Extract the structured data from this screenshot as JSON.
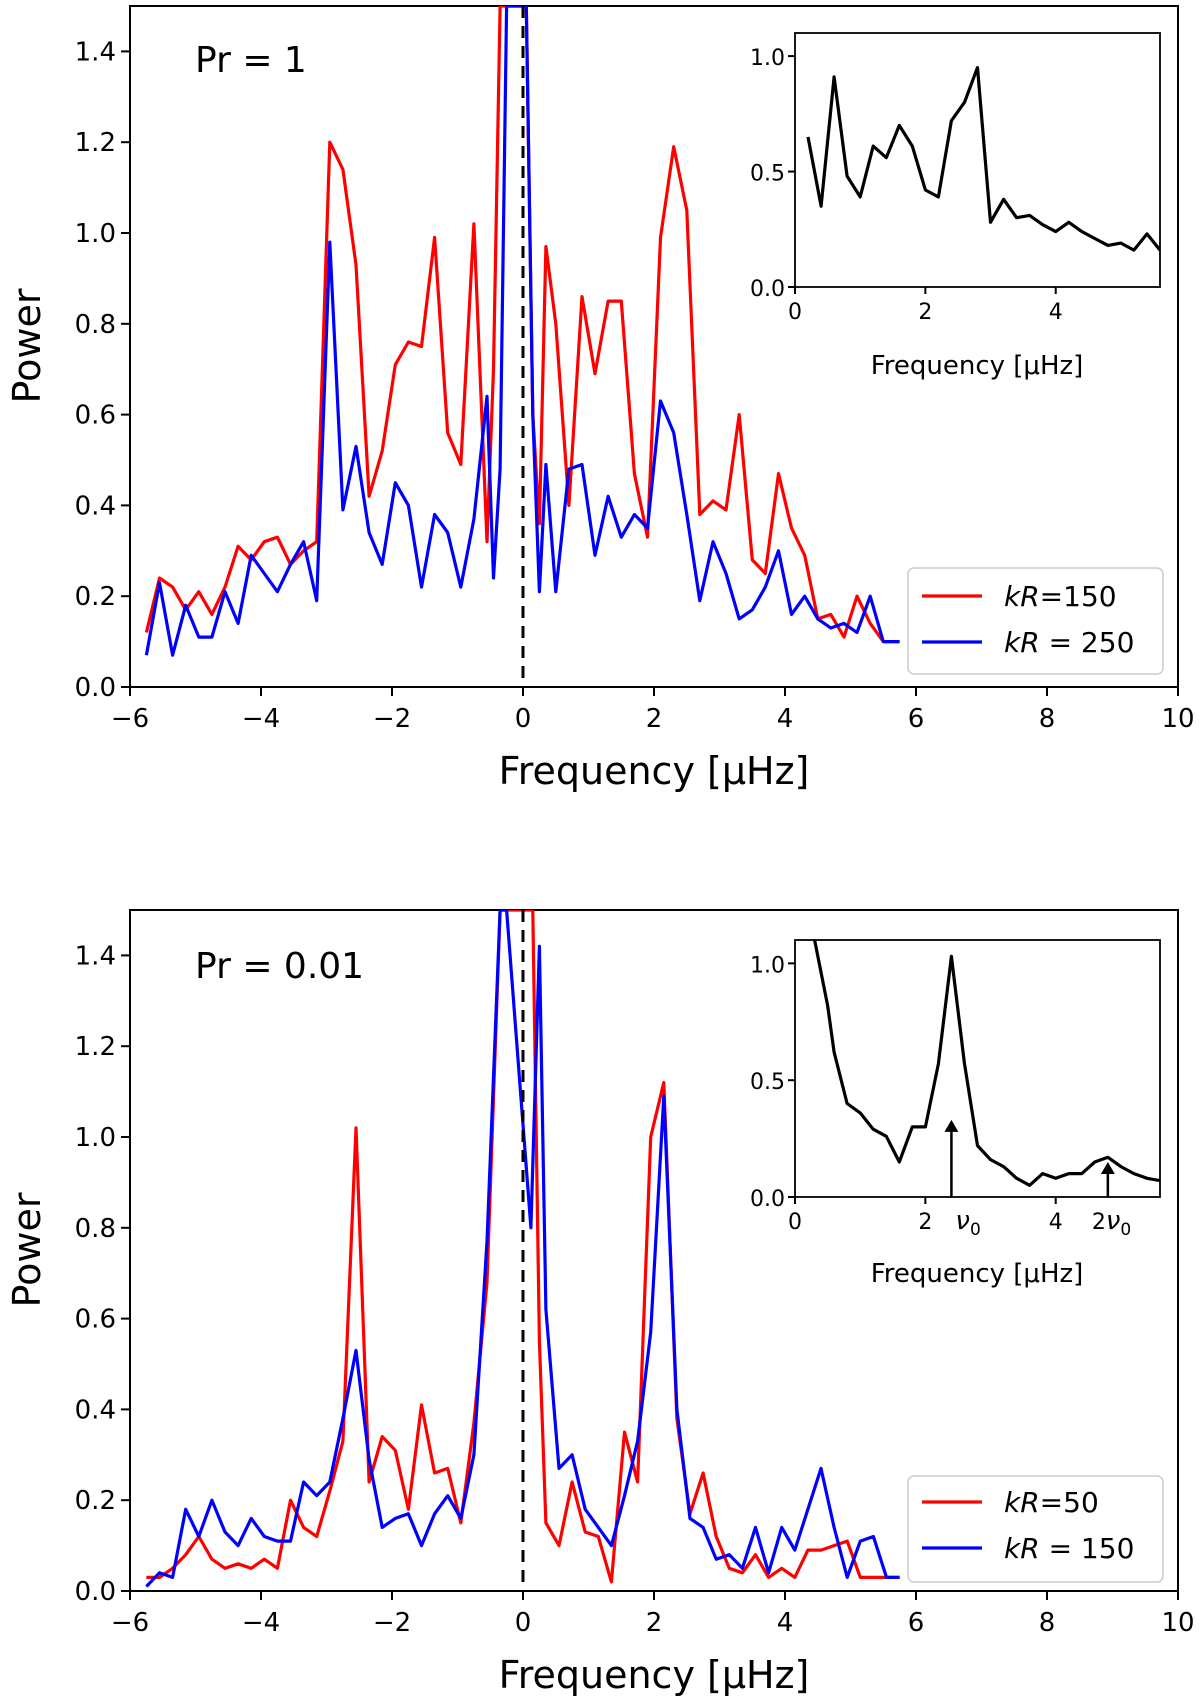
{
  "chart_data": [
    {
      "type": "line",
      "panel": "main-top",
      "title": "Pr = 1",
      "xlabel": "Frequency [μHz]",
      "ylabel": "Power",
      "xlim": [
        -6,
        10
      ],
      "ylim": [
        0,
        1.5
      ],
      "xticks": [
        -6,
        -4,
        -2,
        0,
        2,
        4,
        6,
        8,
        10
      ],
      "xtick_labels": [
        "−6",
        "−4",
        "−2",
        "0",
        "2",
        "4",
        "6",
        "8",
        "10"
      ],
      "yticks": [
        0,
        0.2,
        0.4,
        0.6,
        0.8,
        1.0,
        1.2,
        1.4
      ],
      "ytick_labels": [
        "0.0",
        "0.2",
        "0.4",
        "0.6",
        "0.8",
        "1.0",
        "1.2",
        "1.4"
      ],
      "vline": {
        "x": 0,
        "style": "dashed",
        "color": "#000000"
      },
      "legend_position": "lower-right",
      "series": [
        {
          "name": "kR=150",
          "legend_italic": "kR",
          "legend_rest": "=150",
          "color": "#ff0000",
          "x": [
            -5.75,
            -5.55,
            -5.35,
            -5.15,
            -4.95,
            -4.75,
            -4.55,
            -4.35,
            -4.15,
            -3.95,
            -3.75,
            -3.55,
            -3.35,
            -3.15,
            -2.95,
            -2.75,
            -2.55,
            -2.35,
            -2.15,
            -1.95,
            -1.75,
            -1.55,
            -1.35,
            -1.15,
            -0.95,
            -0.75,
            -0.55,
            -0.45,
            -0.35,
            -0.25,
            0.05,
            0.15,
            0.25,
            0.35,
            0.5,
            0.7,
            0.9,
            1.1,
            1.3,
            1.5,
            1.7,
            1.9,
            2.1,
            2.3,
            2.5,
            2.7,
            2.9,
            3.1,
            3.3,
            3.5,
            3.7,
            3.9,
            4.1,
            4.3,
            4.5,
            4.7,
            4.9,
            5.1,
            5.3,
            5.5,
            5.75
          ],
          "values": [
            0.12,
            0.24,
            0.22,
            0.17,
            0.21,
            0.16,
            0.22,
            0.31,
            0.28,
            0.32,
            0.33,
            0.27,
            0.3,
            0.32,
            1.2,
            1.14,
            0.93,
            0.42,
            0.52,
            0.71,
            0.76,
            0.75,
            0.99,
            0.56,
            0.49,
            1.02,
            0.32,
            0.7,
            1.5,
            1.5,
            1.5,
            0.6,
            0.36,
            0.97,
            0.8,
            0.4,
            0.86,
            0.69,
            0.85,
            0.85,
            0.47,
            0.33,
            0.99,
            1.19,
            1.05,
            0.38,
            0.41,
            0.39,
            0.6,
            0.28,
            0.25,
            0.47,
            0.35,
            0.29,
            0.15,
            0.16,
            0.11,
            0.2,
            0.14,
            0.1,
            0.1
          ]
        },
        {
          "name": "kR = 250",
          "legend_italic": "kR",
          "legend_rest": " = 250",
          "color": "#0000ff",
          "x": [
            -5.75,
            -5.55,
            -5.35,
            -5.15,
            -4.95,
            -4.75,
            -4.55,
            -4.35,
            -4.15,
            -3.95,
            -3.75,
            -3.55,
            -3.35,
            -3.15,
            -2.95,
            -2.75,
            -2.55,
            -2.35,
            -2.15,
            -1.95,
            -1.75,
            -1.55,
            -1.35,
            -1.15,
            -0.95,
            -0.75,
            -0.55,
            -0.45,
            -0.35,
            -0.25,
            0.05,
            0.15,
            0.25,
            0.35,
            0.5,
            0.7,
            0.9,
            1.1,
            1.3,
            1.5,
            1.7,
            1.9,
            2.1,
            2.3,
            2.5,
            2.7,
            2.9,
            3.1,
            3.3,
            3.5,
            3.7,
            3.9,
            4.1,
            4.3,
            4.5,
            4.7,
            4.9,
            5.1,
            5.3,
            5.5,
            5.75
          ],
          "values": [
            0.07,
            0.23,
            0.07,
            0.18,
            0.11,
            0.11,
            0.21,
            0.14,
            0.29,
            0.25,
            0.21,
            0.27,
            0.32,
            0.19,
            0.98,
            0.39,
            0.53,
            0.34,
            0.27,
            0.45,
            0.4,
            0.22,
            0.38,
            0.34,
            0.22,
            0.37,
            0.64,
            0.24,
            0.48,
            1.5,
            1.5,
            0.6,
            0.21,
            0.49,
            0.21,
            0.48,
            0.49,
            0.29,
            0.42,
            0.33,
            0.38,
            0.35,
            0.63,
            0.56,
            0.38,
            0.19,
            0.32,
            0.25,
            0.15,
            0.17,
            0.22,
            0.3,
            0.16,
            0.2,
            0.15,
            0.13,
            0.14,
            0.12,
            0.2,
            0.1,
            0.1
          ]
        }
      ]
    },
    {
      "type": "line",
      "panel": "inset-top",
      "xlabel": "Frequency [μHz]",
      "xlim": [
        0,
        5.6
      ],
      "ylim": [
        0,
        1.1
      ],
      "xticks": [
        0,
        2,
        4
      ],
      "xtick_labels": [
        "0",
        "2",
        "4"
      ],
      "yticks": [
        0,
        0.5,
        1.0
      ],
      "ytick_labels": [
        "0.0",
        "0.5",
        "1.0"
      ],
      "series": [
        {
          "name": "spectrum",
          "color": "#000000",
          "x": [
            0.2,
            0.4,
            0.6,
            0.8,
            1.0,
            1.2,
            1.4,
            1.6,
            1.8,
            2.0,
            2.2,
            2.4,
            2.6,
            2.8,
            3.0,
            3.2,
            3.4,
            3.6,
            3.8,
            4.0,
            4.2,
            4.4,
            4.6,
            4.8,
            5.0,
            5.2,
            5.4,
            5.6
          ],
          "values": [
            0.65,
            0.35,
            0.91,
            0.48,
            0.39,
            0.61,
            0.56,
            0.7,
            0.61,
            0.42,
            0.39,
            0.72,
            0.8,
            0.95,
            0.28,
            0.38,
            0.3,
            0.31,
            0.27,
            0.24,
            0.28,
            0.24,
            0.21,
            0.18,
            0.19,
            0.16,
            0.23,
            0.16
          ]
        }
      ]
    },
    {
      "type": "line",
      "panel": "main-bottom",
      "title": "Pr = 0.01",
      "xlabel": "Frequency [μHz]",
      "ylabel": "Power",
      "xlim": [
        -6,
        10
      ],
      "ylim": [
        0,
        1.5
      ],
      "xticks": [
        -6,
        -4,
        -2,
        0,
        2,
        4,
        6,
        8,
        10
      ],
      "xtick_labels": [
        "−6",
        "−4",
        "−2",
        "0",
        "2",
        "4",
        "6",
        "8",
        "10"
      ],
      "yticks": [
        0,
        0.2,
        0.4,
        0.6,
        0.8,
        1.0,
        1.2,
        1.4
      ],
      "ytick_labels": [
        "0.0",
        "0.2",
        "0.4",
        "0.6",
        "0.8",
        "1.0",
        "1.2",
        "1.4"
      ],
      "vline": {
        "x": 0,
        "style": "dashed",
        "color": "#000000"
      },
      "legend_position": "lower-right",
      "series": [
        {
          "name": "kR=50",
          "legend_italic": "kR",
          "legend_rest": "=50",
          "color": "#ff0000",
          "x": [
            -5.75,
            -5.55,
            -5.35,
            -5.15,
            -4.95,
            -4.75,
            -4.55,
            -4.35,
            -4.15,
            -3.95,
            -3.75,
            -3.55,
            -3.35,
            -3.15,
            -2.95,
            -2.75,
            -2.55,
            -2.35,
            -2.15,
            -1.95,
            -1.75,
            -1.55,
            -1.35,
            -1.15,
            -0.95,
            -0.75,
            -0.55,
            -0.35,
            -0.25,
            0.15,
            0.25,
            0.35,
            0.55,
            0.75,
            0.95,
            1.15,
            1.35,
            1.55,
            1.75,
            1.95,
            2.15,
            2.35,
            2.55,
            2.75,
            2.95,
            3.15,
            3.35,
            3.55,
            3.75,
            3.95,
            4.15,
            4.35,
            4.55,
            4.75,
            4.95,
            5.15,
            5.35,
            5.55,
            5.75
          ],
          "values": [
            0.03,
            0.03,
            0.05,
            0.08,
            0.12,
            0.07,
            0.05,
            0.06,
            0.05,
            0.07,
            0.05,
            0.2,
            0.14,
            0.12,
            0.22,
            0.33,
            1.02,
            0.24,
            0.34,
            0.31,
            0.18,
            0.41,
            0.26,
            0.27,
            0.15,
            0.37,
            0.68,
            1.5,
            1.5,
            1.5,
            0.55,
            0.15,
            0.1,
            0.24,
            0.13,
            0.12,
            0.02,
            0.35,
            0.24,
            1.0,
            1.12,
            0.38,
            0.17,
            0.26,
            0.12,
            0.05,
            0.04,
            0.08,
            0.03,
            0.05,
            0.03,
            0.09,
            0.09,
            0.1,
            0.11,
            0.03,
            0.03,
            0.03,
            0.03
          ]
        },
        {
          "name": "kR = 150",
          "legend_italic": "kR",
          "legend_rest": " = 150",
          "color": "#0000ff",
          "x": [
            -5.75,
            -5.55,
            -5.35,
            -5.15,
            -4.95,
            -4.75,
            -4.55,
            -4.35,
            -4.15,
            -3.95,
            -3.75,
            -3.55,
            -3.35,
            -3.15,
            -2.95,
            -2.75,
            -2.55,
            -2.35,
            -2.15,
            -1.95,
            -1.75,
            -1.55,
            -1.35,
            -1.15,
            -0.95,
            -0.75,
            -0.55,
            -0.35,
            -0.25,
            0.12,
            0.25,
            0.35,
            0.55,
            0.75,
            0.95,
            1.15,
            1.35,
            1.55,
            1.75,
            1.95,
            2.15,
            2.35,
            2.55,
            2.75,
            2.95,
            3.15,
            3.35,
            3.55,
            3.75,
            3.95,
            4.15,
            4.35,
            4.55,
            4.75,
            4.95,
            5.15,
            5.35,
            5.55,
            5.75
          ],
          "values": [
            0.01,
            0.04,
            0.03,
            0.18,
            0.12,
            0.2,
            0.13,
            0.1,
            0.16,
            0.12,
            0.11,
            0.11,
            0.24,
            0.21,
            0.24,
            0.38,
            0.53,
            0.29,
            0.14,
            0.16,
            0.17,
            0.1,
            0.17,
            0.21,
            0.16,
            0.3,
            0.77,
            1.5,
            1.5,
            0.8,
            1.42,
            0.62,
            0.27,
            0.3,
            0.18,
            0.14,
            0.1,
            0.21,
            0.33,
            0.57,
            1.09,
            0.4,
            0.16,
            0.14,
            0.07,
            0.08,
            0.05,
            0.14,
            0.04,
            0.14,
            0.09,
            0.18,
            0.27,
            0.14,
            0.03,
            0.11,
            0.12,
            0.03,
            0.03
          ]
        }
      ]
    },
    {
      "type": "line",
      "panel": "inset-bottom",
      "xlabel": "Frequency [μHz]",
      "xlim": [
        0,
        5.6
      ],
      "ylim": [
        0,
        1.1
      ],
      "xticks": [
        0,
        2,
        4
      ],
      "xtick_labels": [
        "0",
        "2",
        "4"
      ],
      "yticks": [
        0,
        0.5,
        1.0
      ],
      "ytick_labels": [
        "0.0",
        "0.5",
        "1.0"
      ],
      "annotations": [
        {
          "label_main": "ν",
          "label_sub": "0",
          "prefix": "",
          "x": 2.4,
          "arrow_to_y": 0.33
        },
        {
          "label_main": "ν",
          "label_sub": "0",
          "prefix": "2",
          "x": 4.8,
          "arrow_to_y": 0.15
        }
      ],
      "series": [
        {
          "name": "spectrum",
          "color": "#000000",
          "x": [
            0.3,
            0.5,
            0.6,
            0.8,
            1.0,
            1.2,
            1.4,
            1.6,
            1.8,
            2.0,
            2.2,
            2.4,
            2.6,
            2.8,
            3.0,
            3.2,
            3.4,
            3.6,
            3.8,
            4.0,
            4.2,
            4.4,
            4.6,
            4.8,
            5.0,
            5.2,
            5.4,
            5.6
          ],
          "values": [
            1.1,
            0.82,
            0.62,
            0.4,
            0.36,
            0.29,
            0.26,
            0.15,
            0.3,
            0.3,
            0.57,
            1.03,
            0.57,
            0.22,
            0.16,
            0.13,
            0.08,
            0.05,
            0.1,
            0.08,
            0.1,
            0.1,
            0.15,
            0.17,
            0.13,
            0.1,
            0.08,
            0.07
          ]
        }
      ]
    }
  ]
}
